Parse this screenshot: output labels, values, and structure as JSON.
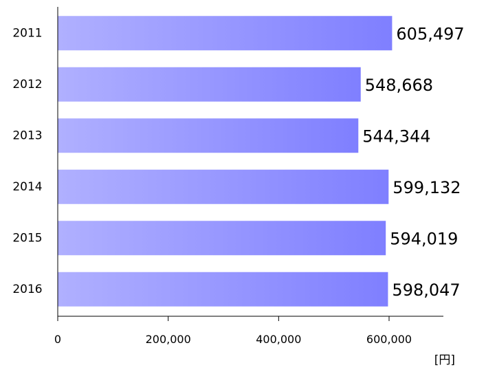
{
  "chart_data": {
    "type": "bar",
    "orientation": "horizontal",
    "categories": [
      "2011",
      "2012",
      "2013",
      "2014",
      "2015",
      "2016"
    ],
    "values": [
      605497,
      548668,
      544344,
      599132,
      594019,
      598047
    ],
    "value_labels": [
      "605,497",
      "548,668",
      "544,344",
      "599,132",
      "594,019",
      "598,047"
    ],
    "x_ticks": [
      0,
      200000,
      400000,
      600000
    ],
    "x_tick_labels": [
      "0",
      "200,000",
      "400,000",
      "600,000"
    ],
    "xlim": [
      0,
      700000
    ],
    "unit_label": "[円]",
    "grid": false,
    "colors": {
      "bar_gradient_start": "#b0b0ff",
      "bar_gradient_end": "#7f7fff",
      "axis": "#000000"
    }
  }
}
